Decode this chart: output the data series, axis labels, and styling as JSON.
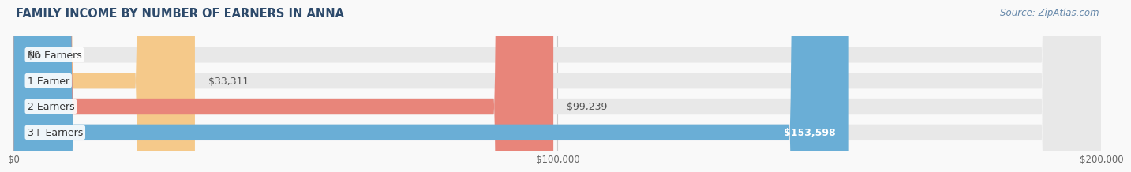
{
  "title": "FAMILY INCOME BY NUMBER OF EARNERS IN ANNA",
  "source": "Source: ZipAtlas.com",
  "categories": [
    "No Earners",
    "1 Earner",
    "2 Earners",
    "3+ Earners"
  ],
  "values": [
    0,
    33311,
    99239,
    153598
  ],
  "bar_colors": [
    "#f4a0b0",
    "#f5c98a",
    "#e8857a",
    "#6aaed6"
  ],
  "label_inside": [
    false,
    false,
    false,
    true
  ],
  "bar_bg_color": "#e8e8e8",
  "xlim": [
    0,
    200000
  ],
  "xticks": [
    0,
    100000,
    200000
  ],
  "xtick_labels": [
    "$0",
    "$100,000",
    "$200,000"
  ],
  "value_labels": [
    "$0",
    "$33,311",
    "$99,239",
    "$153,598"
  ],
  "title_fontsize": 10.5,
  "source_fontsize": 8.5,
  "label_fontsize": 9,
  "tick_fontsize": 8.5,
  "bar_height": 0.62,
  "background_color": "#f9f9f9",
  "rounding_size": 11000
}
